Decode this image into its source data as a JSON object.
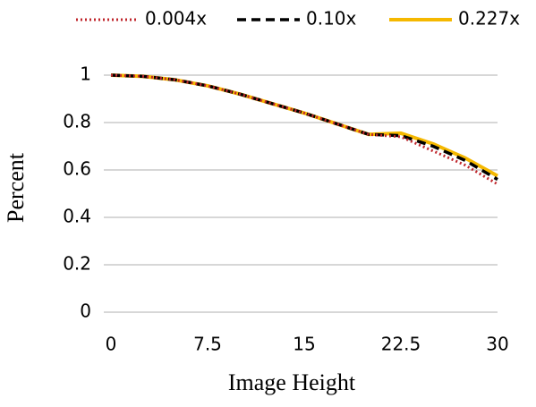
{
  "chart_data": {
    "type": "line",
    "x_label": "Image Height",
    "y_label": "Percent",
    "x": [
      0,
      2.5,
      5,
      7.5,
      10,
      12.5,
      15,
      17.5,
      20,
      22.5,
      25,
      27.5,
      30
    ],
    "series": [
      {
        "name": "0.004x",
        "color": "#c0272d",
        "style": "dotted",
        "values": [
          1,
          0.995,
          0.98,
          0.955,
          0.92,
          0.88,
          0.84,
          0.795,
          0.75,
          0.74,
          0.68,
          0.62,
          0.54
        ]
      },
      {
        "name": "0.10x",
        "color": "#000000",
        "style": "dashed",
        "values": [
          1,
          0.995,
          0.98,
          0.955,
          0.92,
          0.88,
          0.84,
          0.795,
          0.75,
          0.745,
          0.7,
          0.64,
          0.56
        ]
      },
      {
        "name": "0.227x",
        "color": "#f5b800",
        "style": "solid",
        "values": [
          1,
          0.995,
          0.98,
          0.955,
          0.92,
          0.88,
          0.84,
          0.795,
          0.75,
          0.755,
          0.71,
          0.65,
          0.575
        ]
      }
    ],
    "xlim": [
      0,
      30
    ],
    "xticks": [
      0,
      7.5,
      15,
      22.5,
      30
    ],
    "ylim": [
      0,
      1
    ],
    "yticks": [
      0,
      0.2,
      0.4,
      0.6,
      0.8,
      1
    ],
    "grid": true,
    "legend": "top"
  }
}
